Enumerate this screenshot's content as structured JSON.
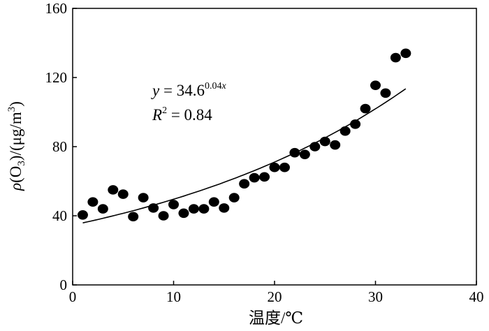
{
  "chart_data": {
    "type": "scatter",
    "xlabel": "温度/℃",
    "ylabel_parts": {
      "rho": "ρ",
      "open": "(O",
      "sub": "3",
      "close": ")/(μg/m",
      "sup": "3",
      "end": ")"
    },
    "xlim": [
      0,
      40
    ],
    "ylim": [
      0,
      160
    ],
    "xticks": [
      "0",
      "10",
      "20",
      "30",
      "40"
    ],
    "yticks": [
      "0",
      "40",
      "80",
      "120",
      "160"
    ],
    "grid": false,
    "legend": "none",
    "series": [
      {
        "points": [
          [
            1,
            40.5
          ],
          [
            2,
            48
          ],
          [
            3,
            44
          ],
          [
            4,
            55
          ],
          [
            5,
            52.5
          ],
          [
            6,
            39.5
          ],
          [
            7,
            50.5
          ],
          [
            8,
            44.5
          ],
          [
            9,
            40
          ],
          [
            10,
            46.5
          ],
          [
            11,
            41.5
          ],
          [
            12,
            44
          ],
          [
            13,
            44
          ],
          [
            14,
            48
          ],
          [
            15,
            44.5
          ],
          [
            16,
            50.5
          ],
          [
            17,
            58.5
          ],
          [
            18,
            62
          ],
          [
            19,
            62.5
          ],
          [
            20,
            68
          ],
          [
            21,
            68
          ],
          [
            22,
            76.5
          ],
          [
            23,
            75.5
          ],
          [
            24,
            80
          ],
          [
            25,
            83
          ],
          [
            26,
            81
          ],
          [
            27,
            89
          ],
          [
            28,
            93
          ],
          [
            29,
            102
          ],
          [
            30,
            115.5
          ],
          [
            31,
            111
          ],
          [
            32,
            131.5
          ],
          [
            33,
            134
          ]
        ],
        "color": "#000000"
      }
    ],
    "fit": {
      "a": 34.6,
      "b": 0.036,
      "x_range": [
        1,
        33
      ],
      "equation": {
        "y": "y",
        "eq": " = 34.6",
        "exp": "0.04",
        "x": "x"
      },
      "r2": {
        "r": "R",
        "sup": "2",
        "eq": " = 0.84"
      }
    }
  }
}
